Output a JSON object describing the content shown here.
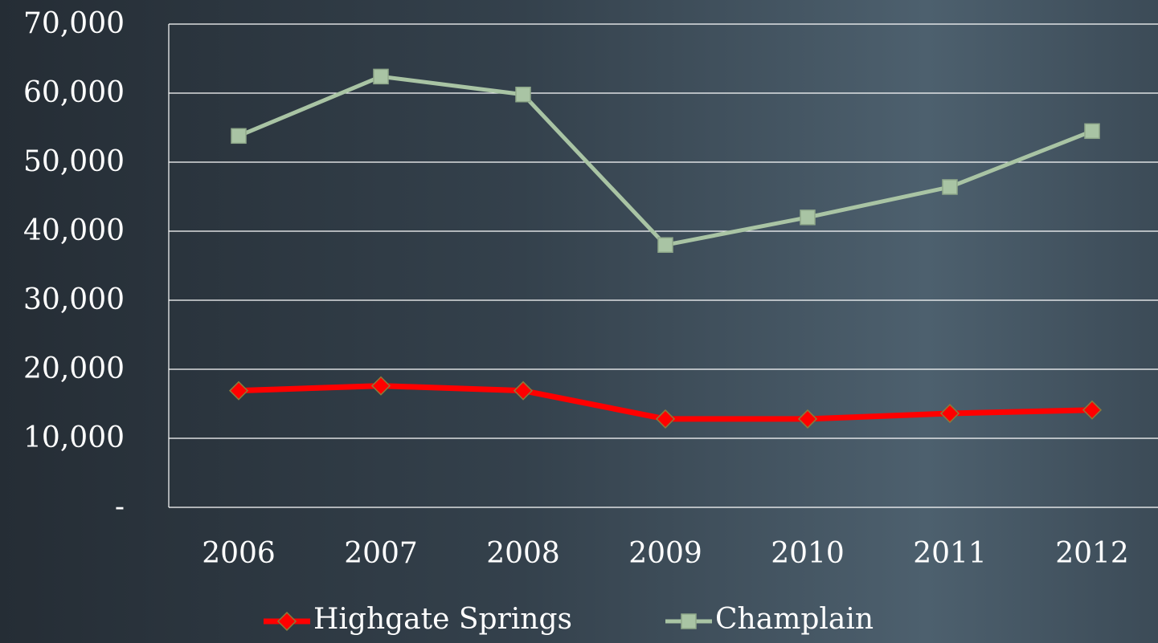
{
  "chart_data": {
    "type": "line",
    "categories": [
      "2006",
      "2007",
      "2008",
      "2009",
      "2010",
      "2011",
      "2012"
    ],
    "series": [
      {
        "name": "Highgate Springs",
        "color": "#ff0000",
        "marker": "diamond",
        "values": [
          16900,
          17600,
          16900,
          12800,
          12800,
          13600,
          14100
        ]
      },
      {
        "name": "Champlain",
        "color": "#a9c4a4",
        "marker": "square",
        "values": [
          53800,
          62400,
          59800,
          38000,
          42000,
          46400,
          54500
        ]
      }
    ],
    "ylim": [
      0,
      70000
    ],
    "yticks": [
      {
        "value": 0,
        "label": "-"
      },
      {
        "value": 10000,
        "label": "10,000"
      },
      {
        "value": 20000,
        "label": "20,000"
      },
      {
        "value": 30000,
        "label": "30,000"
      },
      {
        "value": 40000,
        "label": "40,000"
      },
      {
        "value": 50000,
        "label": "50,000"
      },
      {
        "value": 60000,
        "label": "60,000"
      },
      {
        "value": 70000,
        "label": "70,000"
      }
    ],
    "grid": true,
    "legend": "bottom"
  }
}
